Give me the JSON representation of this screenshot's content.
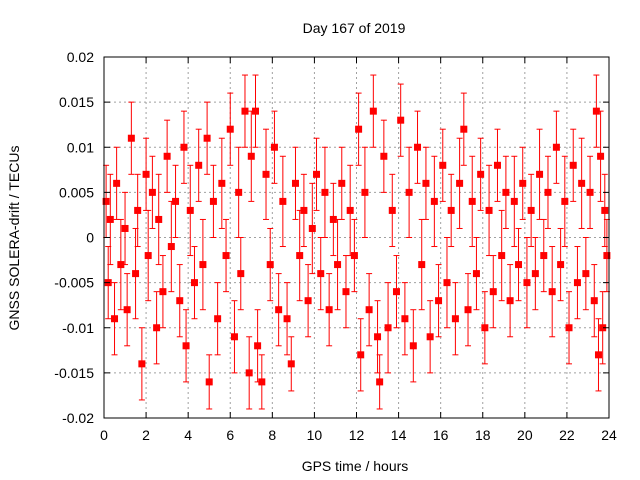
{
  "chart_data": {
    "type": "scatter",
    "title": "Day 167 of 2019",
    "xlabel": "GPS time / hours",
    "ylabel": "GNSS SOLERA-drift / TECUs",
    "xlim": [
      0,
      24
    ],
    "ylim": [
      -0.02,
      0.02
    ],
    "x_ticks": [
      "0",
      "2",
      "4",
      "6",
      "8",
      "10",
      "12",
      "14",
      "16",
      "18",
      "20",
      "22",
      "24"
    ],
    "x_tick_values": [
      0,
      2,
      4,
      6,
      8,
      10,
      12,
      14,
      16,
      18,
      20,
      22,
      24
    ],
    "y_ticks": [
      "-0.02",
      "-0.015",
      "-0.01",
      "-0.005",
      "0",
      "0.005",
      "0.01",
      "0.015",
      "0.02"
    ],
    "y_tick_values": [
      -0.02,
      -0.015,
      -0.01,
      -0.005,
      0,
      0.005,
      0.01,
      0.015,
      0.02
    ],
    "grid": true,
    "legend": "none",
    "series_color": "#ff0000",
    "marker": "square with vertical error bars",
    "series": [
      {
        "x": [
          0.1,
          0.2,
          0.3,
          0.5,
          0.6,
          0.8,
          1.0,
          1.1,
          1.3,
          1.5,
          1.6,
          1.8,
          2.0,
          2.1,
          2.3,
          2.5,
          2.6,
          2.8,
          3.0,
          3.2,
          3.4,
          3.6,
          3.8,
          3.9,
          4.1,
          4.3,
          4.5,
          4.7,
          4.9,
          5.0,
          5.2,
          5.4,
          5.6,
          5.8,
          6.0,
          6.2,
          6.4,
          6.5,
          6.7,
          6.9,
          7.0,
          7.2,
          7.3,
          7.5,
          7.7,
          7.9,
          8.1,
          8.3,
          8.5,
          8.7,
          8.9,
          9.1,
          9.3,
          9.5,
          9.7,
          9.9,
          10.1,
          10.3,
          10.5,
          10.7,
          10.9,
          11.1,
          11.3,
          11.5,
          11.7,
          11.9,
          12.1,
          12.2,
          12.4,
          12.6,
          12.8,
          13.0,
          13.1,
          13.3,
          13.5,
          13.7,
          13.9,
          14.1,
          14.3,
          14.5,
          14.7,
          14.9,
          15.1,
          15.3,
          15.5,
          15.7,
          15.9,
          16.1,
          16.3,
          16.5,
          16.7,
          16.9,
          17.1,
          17.3,
          17.5,
          17.7,
          17.9,
          18.1,
          18.3,
          18.5,
          18.7,
          18.9,
          19.1,
          19.3,
          19.5,
          19.7,
          19.9,
          20.1,
          20.3,
          20.5,
          20.7,
          20.9,
          21.1,
          21.3,
          21.5,
          21.7,
          21.9,
          22.1,
          22.3,
          22.5,
          22.7,
          22.9,
          23.1,
          23.3,
          23.4,
          23.5,
          23.6,
          23.7,
          23.8,
          23.9
        ],
        "y": [
          0.004,
          -0.005,
          0.002,
          -0.009,
          0.006,
          -0.003,
          0.001,
          -0.008,
          0.011,
          -0.004,
          0.003,
          -0.014,
          0.007,
          -0.002,
          0.005,
          -0.01,
          0.002,
          -0.006,
          0.009,
          -0.001,
          0.004,
          -0.007,
          0.01,
          -0.012,
          0.003,
          -0.005,
          0.008,
          -0.003,
          0.011,
          -0.016,
          0.004,
          -0.009,
          0.006,
          -0.002,
          0.012,
          -0.011,
          0.005,
          -0.004,
          0.014,
          -0.015,
          0.009,
          0.014,
          -0.012,
          -0.016,
          0.007,
          -0.003,
          0.01,
          -0.008,
          0.004,
          -0.009,
          -0.014,
          0.006,
          -0.002,
          0.003,
          -0.007,
          0.001,
          0.007,
          -0.004,
          0.005,
          -0.008,
          0.002,
          -0.003,
          0.006,
          -0.006,
          0.003,
          -0.002,
          0.012,
          -0.013,
          0.005,
          -0.008,
          0.014,
          -0.011,
          -0.016,
          0.009,
          -0.01,
          0.003,
          -0.006,
          0.013,
          -0.009,
          0.005,
          -0.012,
          0.01,
          -0.003,
          0.006,
          -0.011,
          0.004,
          -0.007,
          0.008,
          -0.005,
          0.003,
          -0.009,
          0.006,
          0.012,
          -0.008,
          0.004,
          -0.004,
          0.007,
          -0.01,
          0.003,
          -0.006,
          0.008,
          -0.002,
          0.005,
          -0.007,
          0.004,
          -0.003,
          0.006,
          -0.005,
          0.003,
          -0.004,
          0.007,
          -0.002,
          0.005,
          -0.006,
          0.01,
          -0.003,
          0.004,
          -0.01,
          0.008,
          -0.005,
          0.006,
          -0.004,
          0.005,
          -0.007,
          0.014,
          -0.013,
          0.009,
          -0.01,
          0.003,
          -0.002
        ],
        "error": [
          0.004,
          0.004,
          0.005,
          0.004,
          0.004,
          0.005,
          0.004,
          0.004,
          0.004,
          0.005,
          0.004,
          0.004,
          0.004,
          0.005,
          0.004,
          0.004,
          0.005,
          0.004,
          0.004,
          0.005,
          0.004,
          0.004,
          0.004,
          0.004,
          0.005,
          0.004,
          0.004,
          0.005,
          0.004,
          0.003,
          0.004,
          0.004,
          0.005,
          0.004,
          0.004,
          0.004,
          0.005,
          0.004,
          0.004,
          0.004,
          0.005,
          0.004,
          0.004,
          0.003,
          0.005,
          0.004,
          0.004,
          0.004,
          0.005,
          0.004,
          0.003,
          0.004,
          0.005,
          0.004,
          0.004,
          0.005,
          0.004,
          0.004,
          0.005,
          0.004,
          0.004,
          0.005,
          0.004,
          0.004,
          0.005,
          0.004,
          0.004,
          0.004,
          0.005,
          0.004,
          0.004,
          0.004,
          0.003,
          0.004,
          0.005,
          0.004,
          0.004,
          0.004,
          0.004,
          0.005,
          0.004,
          0.004,
          0.005,
          0.004,
          0.004,
          0.005,
          0.004,
          0.004,
          0.005,
          0.004,
          0.004,
          0.005,
          0.004,
          0.004,
          0.005,
          0.004,
          0.004,
          0.004,
          0.005,
          0.004,
          0.004,
          0.005,
          0.004,
          0.004,
          0.005,
          0.004,
          0.004,
          0.005,
          0.004,
          0.004,
          0.005,
          0.004,
          0.004,
          0.005,
          0.004,
          0.004,
          0.005,
          0.004,
          0.004,
          0.004,
          0.005,
          0.004,
          0.004,
          0.004,
          0.004,
          0.004,
          0.005,
          0.004,
          0.004,
          0.004
        ]
      }
    ]
  }
}
